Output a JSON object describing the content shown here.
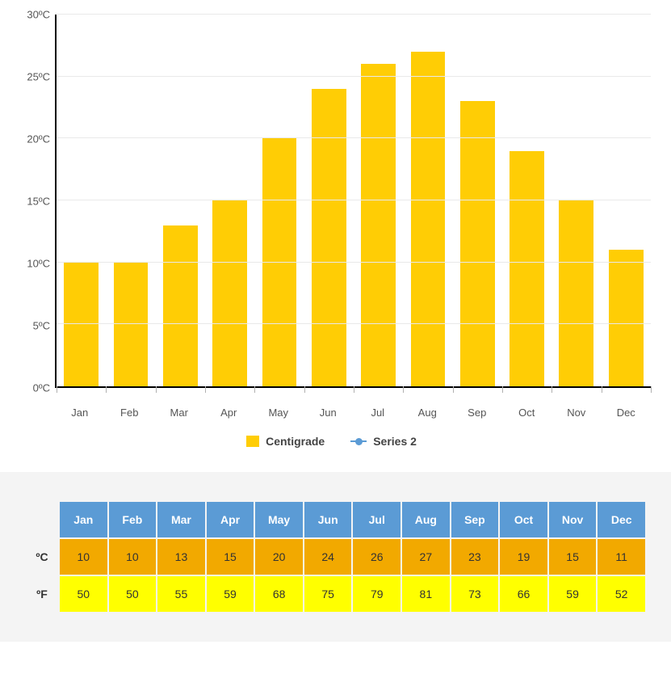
{
  "chart": {
    "type": "bar",
    "categories": [
      "Jan",
      "Feb",
      "Mar",
      "Apr",
      "May",
      "Jun",
      "Jul",
      "Aug",
      "Sep",
      "Oct",
      "Nov",
      "Dec"
    ],
    "values": [
      10,
      10,
      13,
      15,
      20,
      24,
      26,
      27,
      23,
      19,
      15,
      11
    ],
    "bar_color": "#ffcd05",
    "background_color": "#ffffff",
    "grid_color": "#e9e9e9",
    "axis_color": "#000000",
    "ylim": [
      0,
      30
    ],
    "ytick_step": 5,
    "ytick_suffix": "ºC",
    "bar_width": 0.7,
    "label_fontsize": 13,
    "label_color": "#555555",
    "legend": [
      {
        "label": "Centigrade",
        "kind": "bar",
        "color": "#ffcd05"
      },
      {
        "label": "Series 2",
        "kind": "line",
        "color": "#5b9bd5"
      }
    ]
  },
  "table": {
    "header_bg": "#5b9bd5",
    "header_color": "#ffffff",
    "row_c_bg": "#f2a900",
    "row_f_bg": "#ffff00",
    "cell_color": "#333333",
    "columns": [
      "Jan",
      "Feb",
      "Mar",
      "Apr",
      "May",
      "Jun",
      "Jul",
      "Aug",
      "Sep",
      "Oct",
      "Nov",
      "Dec"
    ],
    "rows": [
      {
        "label": "ºC",
        "values": [
          10,
          10,
          13,
          15,
          20,
          24,
          26,
          27,
          23,
          19,
          15,
          11
        ]
      },
      {
        "label": "ºF",
        "values": [
          50,
          50,
          55,
          59,
          68,
          75,
          79,
          81,
          73,
          66,
          59,
          52
        ]
      }
    ]
  }
}
